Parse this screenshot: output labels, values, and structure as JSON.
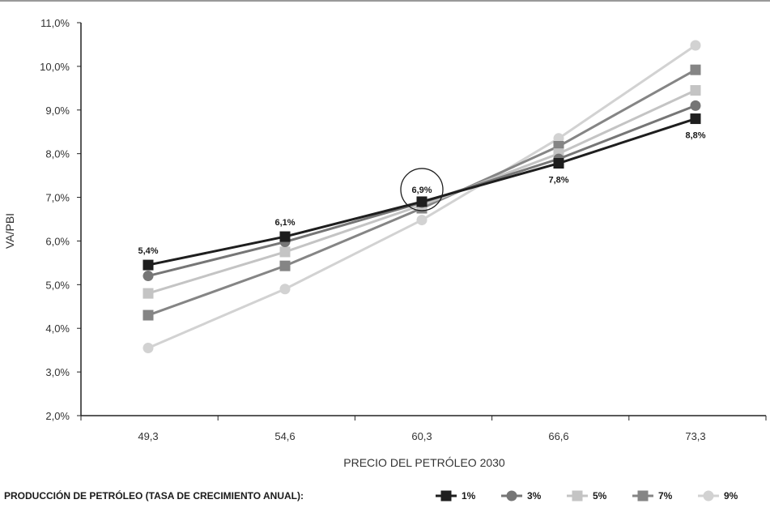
{
  "chart_data": {
    "type": "line",
    "xlabel": "PRECIO DEL PETRÓLEO 2030",
    "ylabel": "VA/PBI",
    "categories": [
      "49,3",
      "54,6",
      "60,3",
      "66,6",
      "73,3"
    ],
    "ylim": [
      2.0,
      11.0
    ],
    "yticks": [
      "2,0%",
      "3,0%",
      "4,0%",
      "5,0%",
      "6,0%",
      "7,0%",
      "8,0%",
      "9,0%",
      "10,0%",
      "11,0%"
    ],
    "legend_title": "PRODUCCIÓN DE PETRÓLEO (TASA DE CRECIMIENTO ANUAL):",
    "legend_position": "bottom",
    "grid": false,
    "series": [
      {
        "name": "9%",
        "color": "#d2d2d2",
        "marker": "circle",
        "values": [
          3.55,
          4.9,
          6.48,
          8.35,
          10.48
        ]
      },
      {
        "name": "7%",
        "color": "#858585",
        "marker": "square",
        "values": [
          4.3,
          5.43,
          6.75,
          8.17,
          9.92
        ]
      },
      {
        "name": "5%",
        "color": "#c4c4c4",
        "marker": "square",
        "values": [
          4.8,
          5.75,
          6.82,
          8.0,
          9.45
        ]
      },
      {
        "name": "3%",
        "color": "#767676",
        "marker": "circle",
        "values": [
          5.2,
          5.98,
          6.88,
          7.88,
          9.1
        ]
      },
      {
        "name": "1%",
        "color": "#1e1e1e",
        "marker": "square",
        "values": [
          5.45,
          6.1,
          6.9,
          7.78,
          8.8
        ]
      }
    ],
    "annotations": [
      {
        "category_index": 0,
        "value": 5.45,
        "text": "5,4%",
        "placement": "above"
      },
      {
        "category_index": 1,
        "value": 6.1,
        "text": "6,1%",
        "placement": "above"
      },
      {
        "category_index": 2,
        "value": 6.9,
        "text": "6,9%",
        "placement": "circled"
      },
      {
        "category_index": 3,
        "value": 7.78,
        "text": "7,8%",
        "placement": "below"
      },
      {
        "category_index": 4,
        "value": 8.8,
        "text": "8,8%",
        "placement": "below"
      }
    ]
  }
}
